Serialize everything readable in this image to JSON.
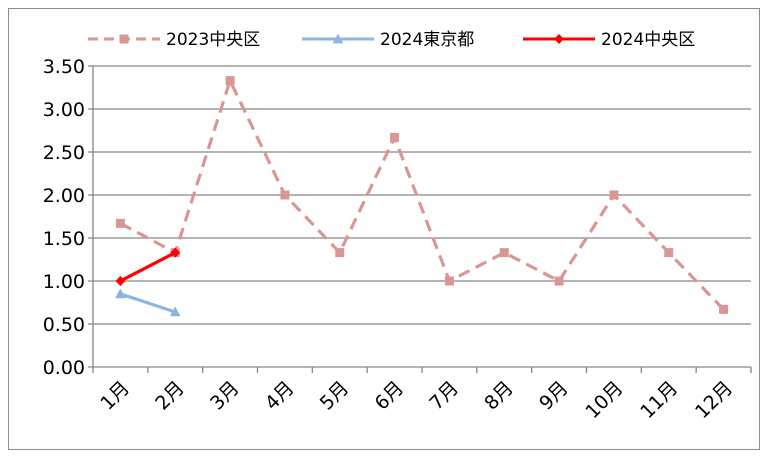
{
  "chart_data": {
    "type": "line",
    "categories": [
      "1月",
      "2月",
      "3月",
      "4月",
      "5月",
      "6月",
      "7月",
      "8月",
      "9月",
      "10月",
      "11月",
      "12月"
    ],
    "ylim": [
      0,
      3.5
    ],
    "yticks": [
      "0.00",
      "0.50",
      "1.00",
      "1.50",
      "2.00",
      "2.50",
      "3.00",
      "3.50"
    ],
    "grid": true,
    "legend_position": "top",
    "series": [
      {
        "name": "2023中央区",
        "values": [
          1.67,
          1.33,
          3.33,
          2.0,
          1.33,
          2.67,
          1.0,
          1.33,
          1.0,
          2.0,
          1.33,
          0.67
        ],
        "color": "#d99694",
        "marker": "square",
        "dash": true
      },
      {
        "name": "2024東京都",
        "values": [
          0.85,
          0.64,
          null,
          null,
          null,
          null,
          null,
          null,
          null,
          null,
          null,
          null
        ],
        "color": "#8eb4e3",
        "marker": "triangle",
        "dash": false
      },
      {
        "name": "2024中央区",
        "values": [
          1.0,
          1.33,
          null,
          null,
          null,
          null,
          null,
          null,
          null,
          null,
          null,
          null
        ],
        "color": "#ff0000",
        "marker": "diamond",
        "dash": false
      }
    ]
  }
}
